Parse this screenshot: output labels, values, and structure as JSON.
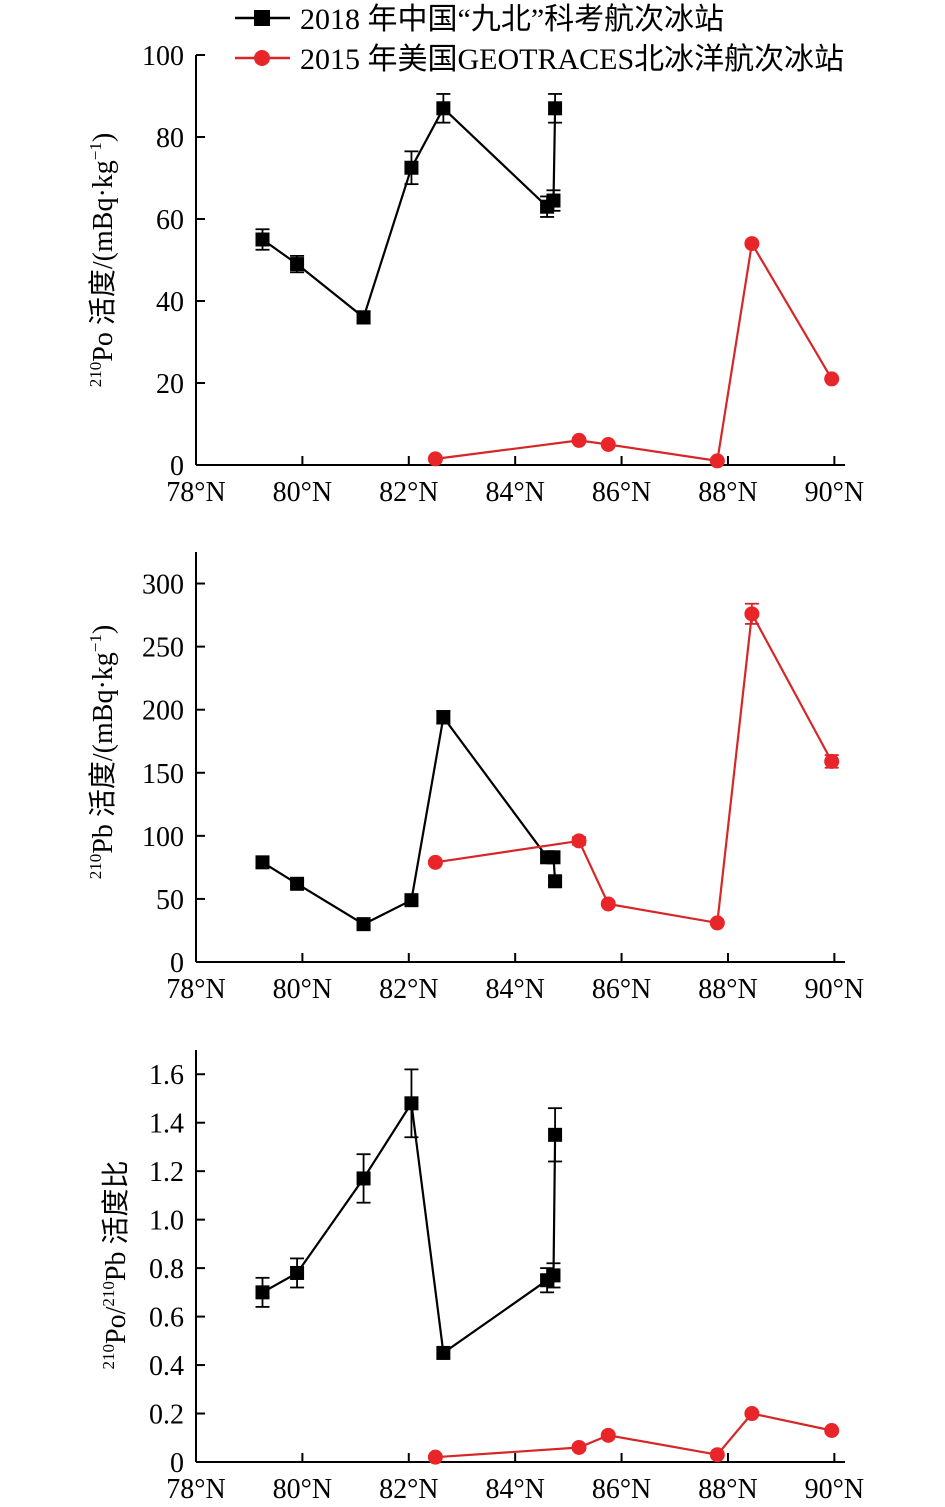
{
  "legend": {
    "position": "top",
    "entries": [
      {
        "label": "2018 年中国“九北”科考航次冰站",
        "color": "#000000",
        "marker": "square"
      },
      {
        "label": "2015 年美国GEOTRACES北冰洋航次冰站",
        "color": "#d62728",
        "marker": "circle"
      }
    ]
  },
  "chart_data": [
    {
      "type": "line",
      "ylabel": {
        "sup1": "210",
        "main": "Po 活度/(mBq·kg",
        "sup2": "−1",
        "end": ")"
      },
      "x_ticks": [
        "78°N",
        "80°N",
        "82°N",
        "84°N",
        "86°N",
        "88°N",
        "90°N"
      ],
      "xlim": [
        78,
        90.2
      ],
      "ylim": [
        0,
        100
      ],
      "y_ticks": [
        0,
        20,
        40,
        60,
        80,
        100
      ],
      "y_tick_labels": [
        "0",
        "20",
        "40",
        "60",
        "80",
        "100"
      ],
      "grid": false,
      "series": [
        {
          "name": "2018 年中国“九北”科考航次冰站",
          "color": "#000000",
          "marker": "square",
          "points": [
            {
              "x": 79.25,
              "y": 55,
              "err": 2.5
            },
            {
              "x": 79.9,
              "y": 49,
              "err": 2
            },
            {
              "x": 81.15,
              "y": 36,
              "err": 1.5
            },
            {
              "x": 82.05,
              "y": 72.5,
              "err": 4
            },
            {
              "x": 82.65,
              "y": 87,
              "err": 3.5
            },
            {
              "x": 84.6,
              "y": 63,
              "err": 2.5
            },
            {
              "x": 84.72,
              "y": 64.5,
              "err": 2.5
            },
            {
              "x": 84.75,
              "y": 87,
              "err": 3.5
            }
          ]
        },
        {
          "name": "2015 年美国GEOTRACES北冰洋航次冰站",
          "color": "#d62728",
          "marker": "circle",
          "points": [
            {
              "x": 82.5,
              "y": 1.5,
              "err": 0
            },
            {
              "x": 85.2,
              "y": 6,
              "err": 0
            },
            {
              "x": 85.75,
              "y": 5,
              "err": 0
            },
            {
              "x": 87.8,
              "y": 1,
              "err": 0
            },
            {
              "x": 88.45,
              "y": 54,
              "err": 0
            },
            {
              "x": 89.95,
              "y": 21,
              "err": 0
            }
          ]
        }
      ]
    },
    {
      "type": "line",
      "ylabel": {
        "sup1": "210",
        "main": "Pb 活度/(mBq·kg",
        "sup2": "−1",
        "end": ")"
      },
      "x_ticks": [
        "78°N",
        "80°N",
        "82°N",
        "84°N",
        "86°N",
        "88°N",
        "90°N"
      ],
      "xlim": [
        78,
        90.2
      ],
      "ylim": [
        0,
        325
      ],
      "y_ticks": [
        0,
        50,
        100,
        150,
        200,
        250,
        300
      ],
      "y_tick_labels": [
        "0",
        "50",
        "100",
        "150",
        "200",
        "250",
        "300"
      ],
      "grid": false,
      "series": [
        {
          "name": "2018 年中国“九北”科考航次冰站",
          "color": "#000000",
          "marker": "square",
          "points": [
            {
              "x": 79.25,
              "y": 79,
              "err": 3
            },
            {
              "x": 79.9,
              "y": 62,
              "err": 2
            },
            {
              "x": 81.15,
              "y": 30,
              "err": 2
            },
            {
              "x": 82.05,
              "y": 49,
              "err": 2
            },
            {
              "x": 82.65,
              "y": 194,
              "err": 5
            },
            {
              "x": 84.6,
              "y": 83,
              "err": 3
            },
            {
              "x": 84.72,
              "y": 83,
              "err": 3
            },
            {
              "x": 84.75,
              "y": 64,
              "err": 3
            }
          ]
        },
        {
          "name": "2015 年美国GEOTRACES北冰洋航次冰站",
          "color": "#d62728",
          "marker": "circle",
          "points": [
            {
              "x": 82.5,
              "y": 79,
              "err": 0
            },
            {
              "x": 85.2,
              "y": 96,
              "err": 3
            },
            {
              "x": 85.75,
              "y": 46,
              "err": 0
            },
            {
              "x": 87.8,
              "y": 31,
              "err": 0
            },
            {
              "x": 88.45,
              "y": 276,
              "err": 8
            },
            {
              "x": 89.95,
              "y": 159,
              "err": 5
            }
          ]
        }
      ]
    },
    {
      "type": "line",
      "ylabel": {
        "sup1": "210",
        "main": "Po/",
        "sup2": "210",
        "end": "Pb 活度比"
      },
      "x_ticks": [
        "78°N",
        "80°N",
        "82°N",
        "84°N",
        "86°N",
        "88°N",
        "90°N"
      ],
      "xlim": [
        78,
        90.2
      ],
      "ylim": [
        0,
        1.7
      ],
      "y_ticks": [
        0,
        0.2,
        0.4,
        0.6,
        0.8,
        1.0,
        1.2,
        1.4,
        1.6
      ],
      "y_tick_labels": [
        "0",
        "0.2",
        "0.4",
        "0.6",
        "0.8",
        "1.0",
        "1.2",
        "1.4",
        "1.6"
      ],
      "grid": false,
      "series": [
        {
          "name": "2018 年中国“九北”科考航次冰站",
          "color": "#000000",
          "marker": "square",
          "points": [
            {
              "x": 79.25,
              "y": 0.7,
              "err": 0.06
            },
            {
              "x": 79.9,
              "y": 0.78,
              "err": 0.06
            },
            {
              "x": 81.15,
              "y": 1.17,
              "err": 0.1
            },
            {
              "x": 82.05,
              "y": 1.48,
              "err": 0.14
            },
            {
              "x": 82.65,
              "y": 0.45,
              "err": 0
            },
            {
              "x": 84.6,
              "y": 0.75,
              "err": 0.05
            },
            {
              "x": 84.72,
              "y": 0.77,
              "err": 0.05
            },
            {
              "x": 84.75,
              "y": 1.35,
              "err": 0.11
            }
          ]
        },
        {
          "name": "2015 年美国GEOTRACES北冰洋航次冰站",
          "color": "#d62728",
          "marker": "circle",
          "points": [
            {
              "x": 82.5,
              "y": 0.02,
              "err": 0
            },
            {
              "x": 85.2,
              "y": 0.06,
              "err": 0
            },
            {
              "x": 85.75,
              "y": 0.11,
              "err": 0
            },
            {
              "x": 87.8,
              "y": 0.03,
              "err": 0
            },
            {
              "x": 88.45,
              "y": 0.2,
              "err": 0
            },
            {
              "x": 89.95,
              "y": 0.13,
              "err": 0
            }
          ]
        }
      ]
    }
  ]
}
